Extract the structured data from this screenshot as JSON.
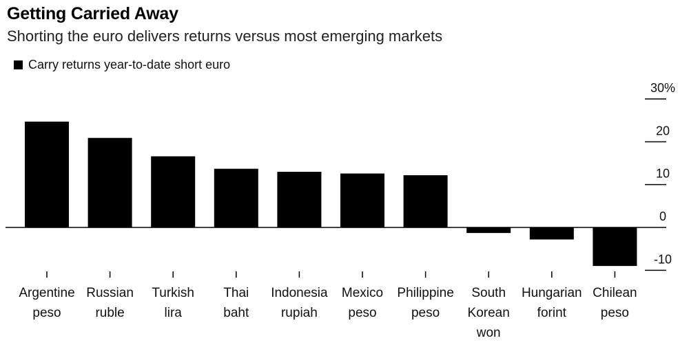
{
  "title": "Getting Carried Away",
  "subtitle": "Shorting the euro delivers returns versus most emerging markets",
  "legend_label": "Carry returns year-to-date short euro",
  "colors": {
    "bar": "#000000",
    "axis": "#000000",
    "text": "#111111"
  },
  "chart_data": {
    "type": "bar",
    "title": "Getting Carried Away",
    "subtitle": "Shorting the euro delivers returns versus most emerging markets",
    "categories": [
      [
        "Argentine",
        "peso"
      ],
      [
        "Russian",
        "ruble"
      ],
      [
        "Turkish",
        "lira"
      ],
      [
        "Thai",
        "baht"
      ],
      [
        "Indonesia",
        "rupiah"
      ],
      [
        "Mexico",
        "peso"
      ],
      [
        "Philippine",
        "peso"
      ],
      [
        "South",
        "Korean",
        "won"
      ],
      [
        "Hungarian",
        "forint"
      ],
      [
        "Chilean",
        "peso"
      ]
    ],
    "series": [
      {
        "name": "Carry returns year-to-date short euro",
        "values": [
          24.7,
          20.9,
          16.6,
          13.7,
          13.0,
          12.6,
          12.2,
          -1.3,
          -2.8,
          -9.0
        ]
      }
    ],
    "ylim": [
      -10,
      30
    ],
    "yticks": [
      30,
      20,
      10,
      0,
      -10
    ],
    "ytick_labels": [
      "30%",
      "20",
      "10",
      "0",
      "-10"
    ],
    "yaxis_position": "right",
    "grid": false,
    "legend_position": "top-left"
  }
}
